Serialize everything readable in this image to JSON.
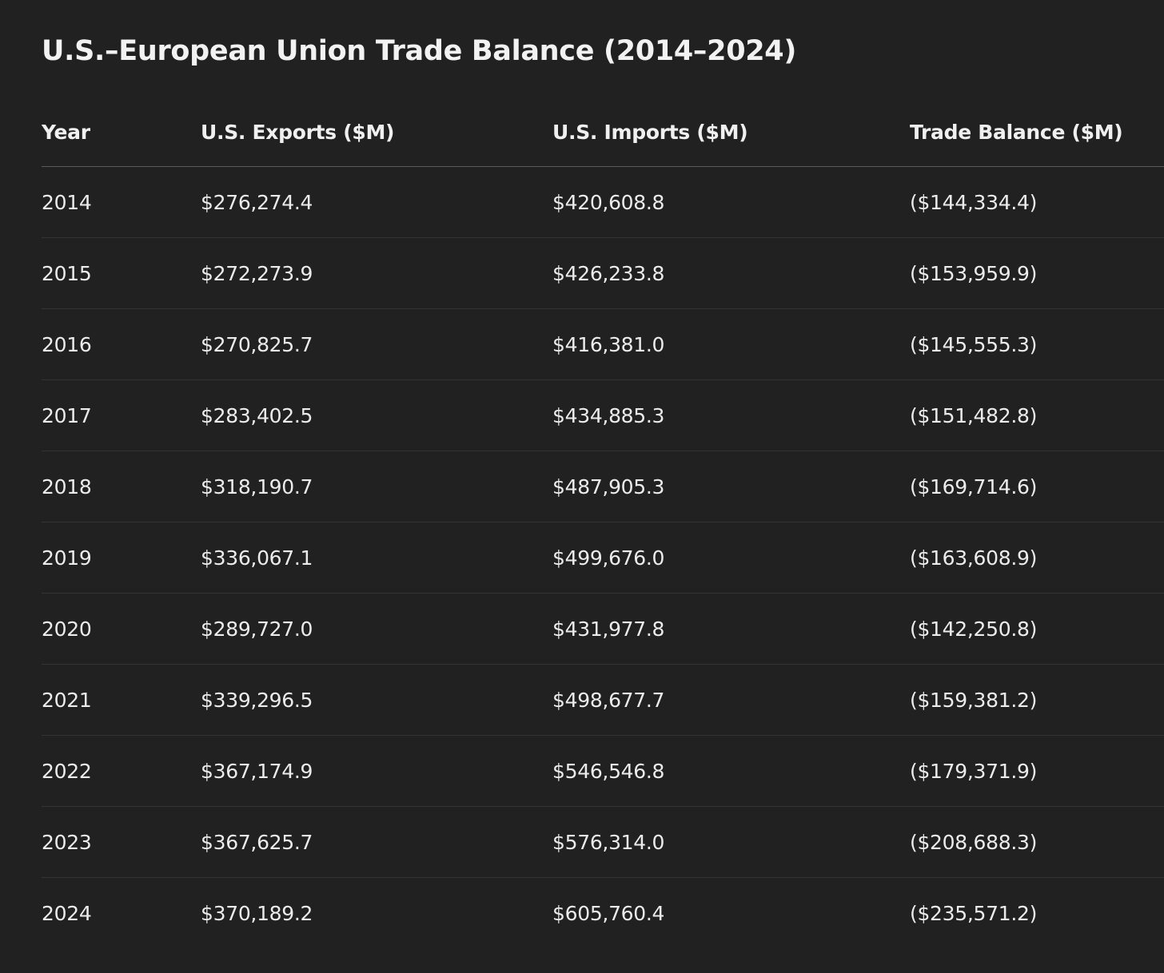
{
  "title": "U.S.–European Union Trade Balance (2014–2024)",
  "columns": [
    "Year",
    "U.S. Exports ($M)",
    "U.S. Imports ($M)",
    "Trade Balance ($M)"
  ],
  "rows": [
    [
      "2014",
      "$276,274.4",
      "$420,608.8",
      "($144,334.4)"
    ],
    [
      "2015",
      "$272,273.9",
      "$426,233.8",
      "($153,959.9)"
    ],
    [
      "2016",
      "$270,825.7",
      "$416,381.0",
      "($145,555.3)"
    ],
    [
      "2017",
      "$283,402.5",
      "$434,885.3",
      "($151,482.8)"
    ],
    [
      "2018",
      "$318,190.7",
      "$487,905.3",
      "($169,714.6)"
    ],
    [
      "2019",
      "$336,067.1",
      "$499,676.0",
      "($163,608.9)"
    ],
    [
      "2020",
      "$289,727.0",
      "$431,977.8",
      "($142,250.8)"
    ],
    [
      "2021",
      "$339,296.5",
      "$498,677.7",
      "($159,381.2)"
    ],
    [
      "2022",
      "$367,174.9",
      "$546,546.8",
      "($179,371.9)"
    ],
    [
      "2023",
      "$367,625.7",
      "$576,314.0",
      "($208,688.3)"
    ],
    [
      "2024",
      "$370,189.2",
      "$605,760.4",
      "($235,571.2)"
    ]
  ]
}
